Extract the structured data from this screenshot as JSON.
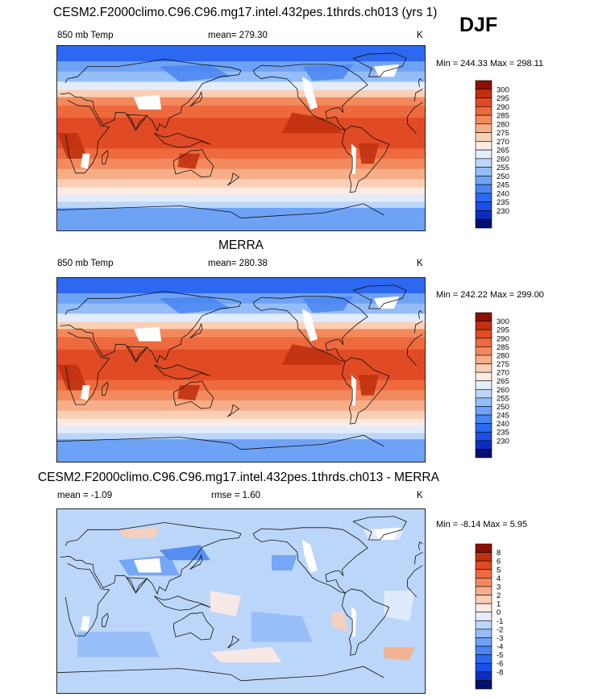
{
  "season": "DJF",
  "colors": {
    "temp_scale": [
      "#001070",
      "#0a2fc0",
      "#1a4ee8",
      "#2c68f0",
      "#4a86f2",
      "#6ea2f5",
      "#95bdf8",
      "#bcd6fa",
      "#e2ecfc",
      "#fdeae2",
      "#fbcfb6",
      "#f7ae88",
      "#f38a5d",
      "#ee6a3e",
      "#e04a24",
      "#c0310f",
      "#8c1004"
    ],
    "diff_scale": [
      "#001070",
      "#0a2fc0",
      "#1a4ee8",
      "#2c68f0",
      "#4a86f2",
      "#6ea2f5",
      "#95bdf8",
      "#bcd6fa",
      "#e2ecfc",
      "#fdeae2",
      "#fbcfb6",
      "#f7ae88",
      "#f38a5d",
      "#ee6a3e",
      "#e04a24",
      "#c0310f",
      "#8c1004"
    ],
    "missing": "#ffffff",
    "coast": "#111111"
  },
  "chart_data": [
    {
      "type": "heatmap",
      "title": "CESM2.F2000climo.C96.C96.mg17.intel.432pes.1thrds.ch013 (yrs 1)",
      "variable": "850 mb Temp",
      "mean_text": "mean= 279.30",
      "units": "K",
      "min_max_text": "Min = 244.33 Max = 298.11",
      "min": 244.33,
      "max": 298.11,
      "mean": 279.3,
      "levels": [
        230,
        235,
        240,
        245,
        250,
        255,
        260,
        265,
        270,
        275,
        280,
        285,
        290,
        295,
        300
      ],
      "level_labels": [
        "300",
        "295",
        "290",
        "285",
        "280",
        "275",
        "270",
        "265",
        "260",
        "255",
        "250",
        "245",
        "240",
        "235",
        "230"
      ]
    },
    {
      "type": "heatmap",
      "title": "MERRA",
      "variable": "850 mb Temp",
      "mean_text": "mean= 280.38",
      "units": "K",
      "min_max_text": "Min = 242.22 Max = 299.00",
      "min": 242.22,
      "max": 299.0,
      "mean": 280.38,
      "levels": [
        230,
        235,
        240,
        245,
        250,
        255,
        260,
        265,
        270,
        275,
        280,
        285,
        290,
        295,
        300
      ],
      "level_labels": [
        "300",
        "295",
        "290",
        "285",
        "280",
        "275",
        "270",
        "265",
        "260",
        "255",
        "250",
        "245",
        "240",
        "235",
        "230"
      ]
    },
    {
      "type": "heatmap",
      "title": "CESM2.F2000climo.C96.C96.mg17.intel.432pes.1thrds.ch013 - MERRA",
      "mean_text": "mean =  -1.09",
      "rmse_text": "rmse =   1.60",
      "units": "K",
      "min_max_text": "Min =  -8.14 Max =   5.95",
      "min": -8.14,
      "max": 5.95,
      "mean": -1.09,
      "rmse": 1.6,
      "levels": [
        -8,
        -6,
        -5,
        -4,
        -3,
        -2,
        -1,
        0,
        1,
        2,
        3,
        4,
        5,
        6,
        8
      ],
      "level_labels": [
        "8",
        "6",
        "5",
        "4",
        "3",
        "2",
        "1",
        "0",
        "-1",
        "-2",
        "-3",
        "-4",
        "-5",
        "-6",
        "-8"
      ]
    }
  ]
}
